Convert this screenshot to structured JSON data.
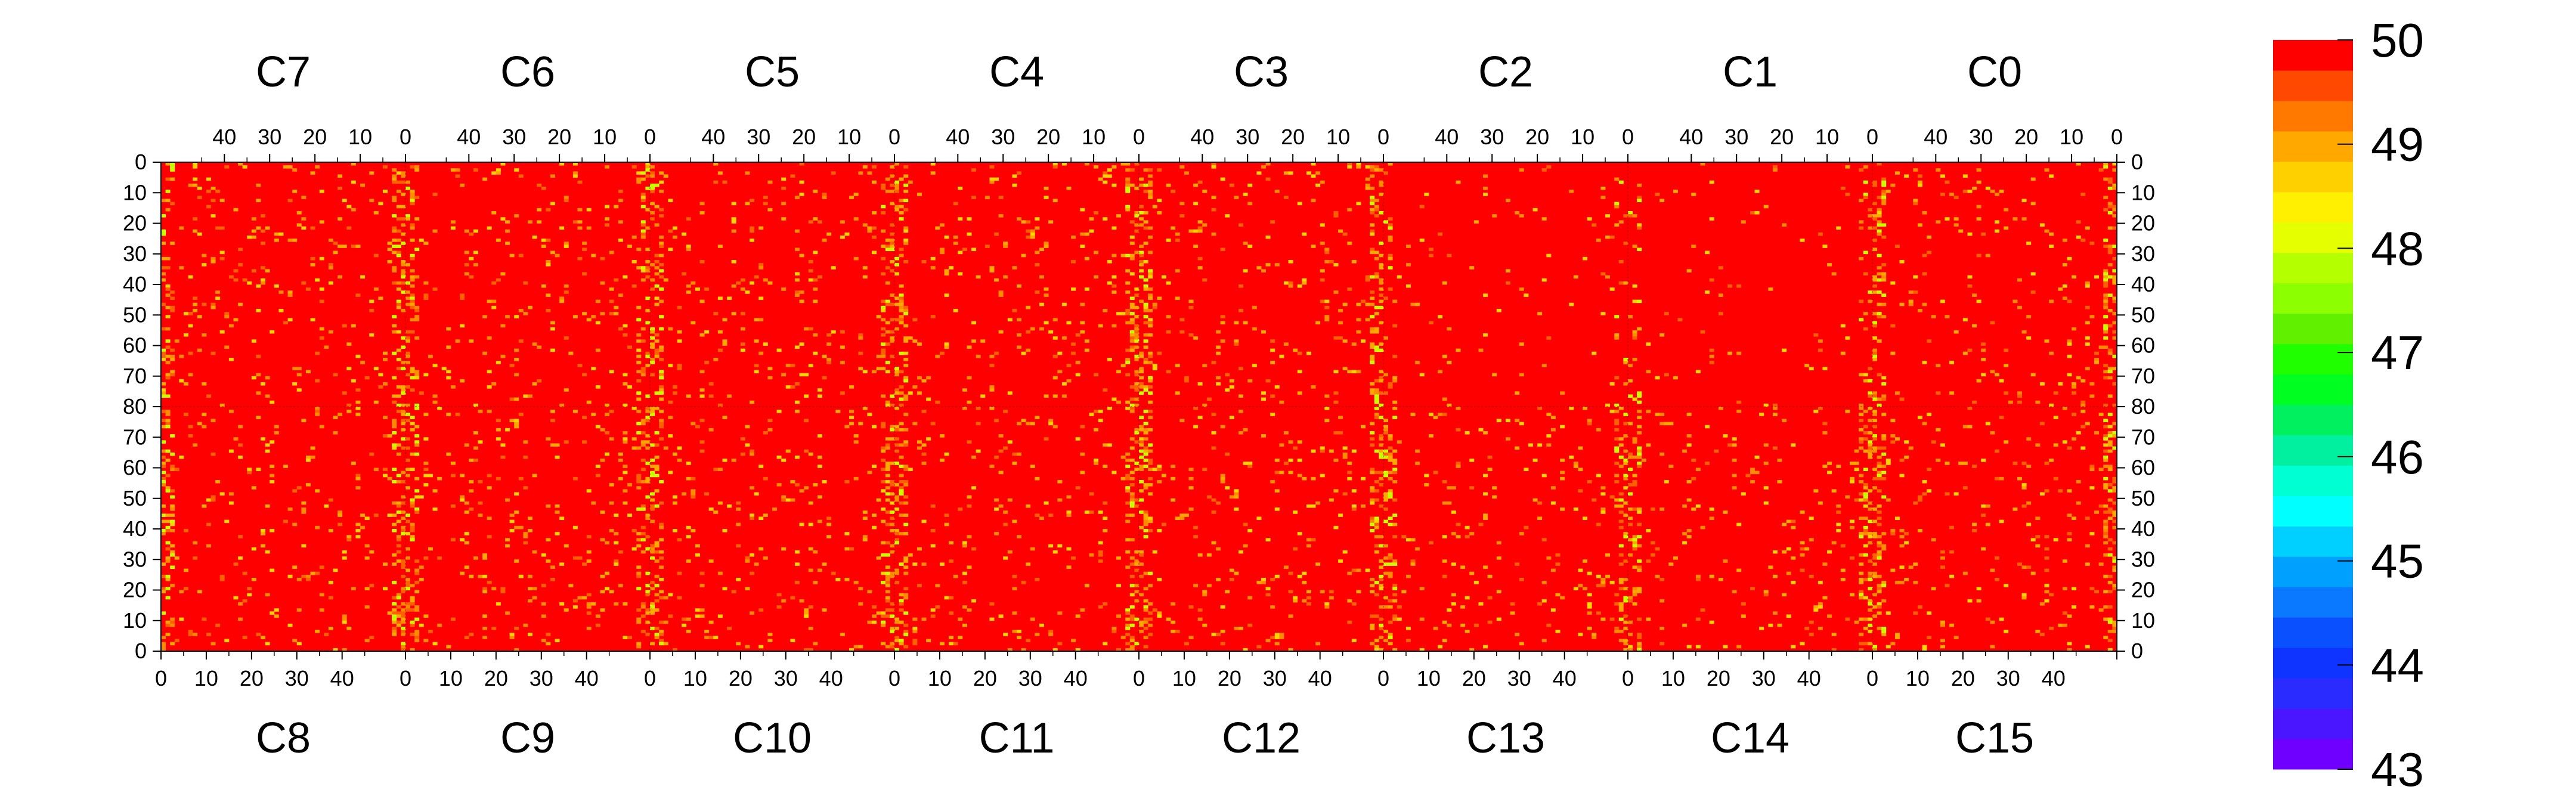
{
  "chart_data": {
    "type": "heatmap",
    "title": "",
    "xlabel": "",
    "ylabel": "",
    "top_chip_labels": [
      "C7",
      "C6",
      "C5",
      "C4",
      "C3",
      "C2",
      "C1",
      "C0"
    ],
    "bottom_chip_labels": [
      "C8",
      "C9",
      "C10",
      "C11",
      "C12",
      "C13",
      "C14",
      "C15"
    ],
    "top_axis_ticks": [
      "40",
      "30",
      "20",
      "10",
      "0"
    ],
    "bottom_axis_ticks": [
      "0",
      "10",
      "20",
      "30",
      "40"
    ],
    "left_axis_ticks": [
      "0",
      "10",
      "20",
      "30",
      "40",
      "50",
      "60",
      "70",
      "80",
      "70",
      "60",
      "50",
      "40",
      "30",
      "20",
      "10",
      "0"
    ],
    "right_axis_ticks": [
      "0",
      "10",
      "20",
      "30",
      "40",
      "50",
      "60",
      "70",
      "80",
      "70",
      "60",
      "50",
      "40",
      "30",
      "20",
      "10",
      "0"
    ],
    "columns_per_chip": 54,
    "rows_per_half": 80,
    "z_range": [
      43,
      50
    ],
    "colorbar_ticks": [
      "43",
      "44",
      "45",
      "46",
      "47",
      "48",
      "49",
      "50"
    ],
    "colorbar_colors": [
      "#6f00ff",
      "#4a16ff",
      "#2a2cff",
      "#1034ff",
      "#0a50ff",
      "#0a78ff",
      "#00a0ff",
      "#00d0ff",
      "#00ffff",
      "#00ffd2",
      "#00f0a0",
      "#00f060",
      "#00ff20",
      "#20ff00",
      "#60f000",
      "#8cff00",
      "#b4ff00",
      "#e6ff00",
      "#fff000",
      "#ffd000",
      "#ffa800",
      "#ff7800",
      "#ff4800",
      "#ff0000"
    ],
    "dominant_value": 50,
    "noise_palette": [
      "#ff6000",
      "#ff8c00",
      "#ffa800",
      "#ffd400",
      "#c8ff00"
    ],
    "noisy_column_chips": [
      "C7",
      "C6",
      "C5",
      "C4",
      "C3",
      "C0",
      "C8",
      "C9",
      "C10",
      "C11",
      "C12",
      "C13",
      "C14",
      "C15"
    ]
  }
}
